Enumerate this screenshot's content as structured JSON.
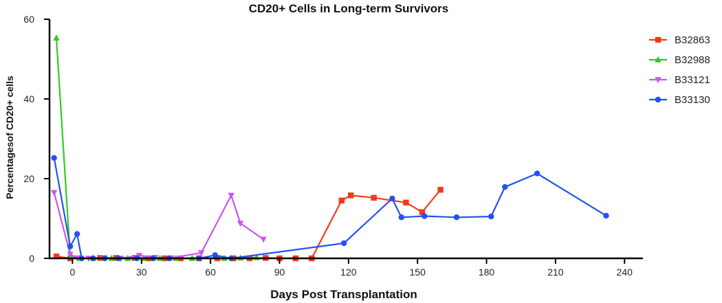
{
  "chart_data": {
    "type": "line",
    "title": "CD20+ Cells in Long-term Survivors",
    "xlabel": "Days Post Transplantation",
    "ylabel": "Percentagesof  CD20+ cells",
    "xlim": [
      -10,
      248
    ],
    "ylim": [
      0,
      60
    ],
    "xticks": [
      0,
      30,
      60,
      90,
      120,
      150,
      180,
      210,
      240
    ],
    "yticks": [
      0,
      20,
      40,
      60
    ],
    "grid": false,
    "legend_position": "top-right",
    "series": [
      {
        "name": "B32863",
        "color": "#f23a1c",
        "marker": "square",
        "x": [
          -7,
          -1,
          12,
          19,
          27,
          33,
          40,
          47,
          55,
          63,
          70,
          77,
          84,
          90,
          97,
          104,
          117,
          121,
          131,
          145,
          152,
          160
        ],
        "y": [
          0.5,
          0,
          0.1,
          0.1,
          0.1,
          0,
          0,
          0,
          0,
          0,
          0,
          0,
          0.1,
          0,
          0,
          0,
          14.5,
          15.8,
          15.2,
          14.0,
          11.6,
          17.2
        ]
      },
      {
        "name": "B32988",
        "color": "#2ecc1f",
        "marker": "triangle-up",
        "x": [
          -7,
          -1,
          3,
          9,
          17,
          24,
          31,
          38,
          45,
          52,
          66,
          73,
          80
        ],
        "y": [
          55.3,
          0.5,
          0,
          0,
          0,
          0,
          0,
          0,
          0,
          0,
          0,
          0.1,
          0.2
        ]
      },
      {
        "name": "B33121",
        "color": "#cc55ee",
        "marker": "triangle-down",
        "x": [
          -8,
          -1,
          2,
          7,
          14,
          21,
          29,
          36,
          43,
          56,
          69,
          73,
          83
        ],
        "y": [
          16.5,
          1.0,
          0.1,
          0,
          0.1,
          0,
          0.7,
          0.2,
          0.1,
          1.4,
          15.8,
          8.8,
          4.8
        ]
      },
      {
        "name": "B33130",
        "color": "#2251ee",
        "marker": "circle",
        "x": [
          -8,
          -1,
          2,
          4,
          9,
          14,
          20,
          28,
          35,
          42,
          55,
          62,
          69,
          118,
          139,
          143,
          153,
          167,
          182,
          188,
          202,
          232
        ],
        "y": [
          25.2,
          3.0,
          6.1,
          0,
          0,
          0,
          0,
          0,
          0,
          0,
          0,
          0.8,
          0,
          3.8,
          15.0,
          10.3,
          10.6,
          10.3,
          10.5,
          17.9,
          21.3,
          10.7
        ]
      }
    ]
  }
}
